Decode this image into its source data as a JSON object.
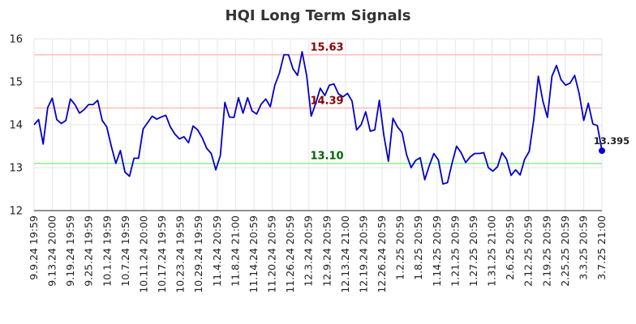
{
  "chart_data": {
    "type": "line",
    "title": "HQI Long Term Signals",
    "xlabel": "",
    "ylabel": "",
    "ylim": [
      12,
      16
    ],
    "yticks": [
      "12",
      "13",
      "14",
      "15",
      "16"
    ],
    "grid": true,
    "x_tick_labels": [
      "9.9.24 19:59",
      "9.13.24 20:00",
      "9.19.24 19:59",
      "9.25.24 19:59",
      "10.1.24 19:59",
      "10.7.24 19:59",
      "10.11.24 20:00",
      "10.17.24 19:59",
      "10.23.24 19:59",
      "10.29.24 19:59",
      "11.4.24 20:59",
      "11.8.24 21:00",
      "11.14.24 20:59",
      "11.20.24 20:59",
      "11.26.24 20:59",
      "12.3.24 20:59",
      "12.9.24 20:59",
      "12.13.24 21:00",
      "12.19.24 20:59",
      "12.26.24 20:59",
      "1.2.25 20:59",
      "1.8.25 20:59",
      "1.14.25 20:59",
      "1.21.25 20:59",
      "1.27.25 20:59",
      "1.31.25 21:00",
      "2.6.25 20:59",
      "2.12.25 20:59",
      "2.19.25 20:59",
      "2.25.25 20:59",
      "3.3.25 20:59",
      "3.7.25 21:00"
    ],
    "series": [
      {
        "color": "#0000cc",
        "values": [
          14.0,
          14.12,
          13.55,
          14.4,
          14.62,
          14.12,
          14.03,
          14.1,
          14.6,
          14.47,
          14.27,
          14.35,
          14.47,
          14.47,
          14.57,
          14.1,
          13.95,
          13.5,
          13.1,
          13.4,
          12.9,
          12.8,
          13.22,
          13.22,
          13.9,
          14.05,
          14.2,
          14.13,
          14.18,
          14.22,
          13.95,
          13.78,
          13.67,
          13.72,
          13.58,
          13.97,
          13.88,
          13.7,
          13.45,
          13.33,
          12.95,
          13.28,
          14.52,
          14.18,
          14.17,
          14.63,
          14.27,
          14.63,
          14.32,
          14.25,
          14.48,
          14.6,
          14.42,
          14.92,
          15.2,
          15.63,
          15.63,
          15.3,
          15.15,
          15.7,
          15.15,
          14.2,
          14.5,
          14.85,
          14.68,
          14.92,
          14.95,
          14.72,
          14.65,
          14.73,
          14.55,
          13.88,
          14.0,
          14.3,
          13.85,
          13.88,
          14.57,
          13.75,
          13.15,
          14.15,
          13.95,
          13.82,
          13.3,
          13.0,
          13.17,
          13.23,
          12.72,
          13.05,
          13.33,
          13.18,
          12.62,
          12.65,
          13.1,
          13.5,
          13.35,
          13.12,
          13.25,
          13.33,
          13.33,
          13.35,
          13.0,
          12.92,
          13.02,
          13.35,
          13.2,
          12.82,
          12.95,
          12.83,
          13.2,
          13.38,
          14.12,
          15.13,
          14.55,
          14.17,
          15.13,
          15.38,
          15.05,
          14.92,
          14.97,
          15.15,
          14.72,
          14.1,
          14.5,
          14.02,
          13.98,
          13.395
        ]
      }
    ],
    "hlines": [
      {
        "value": 15.63,
        "label": "15.63",
        "line_color": "#ffbbbb",
        "label_color": "#8b0000"
      },
      {
        "value": 14.39,
        "label": "14.39",
        "line_color": "#ffbbbb",
        "label_color": "#8b0000"
      },
      {
        "value": 13.1,
        "label": "13.10",
        "line_color": "#90ee90",
        "label_color": "#006400"
      }
    ],
    "last_value_label": "13.395"
  }
}
